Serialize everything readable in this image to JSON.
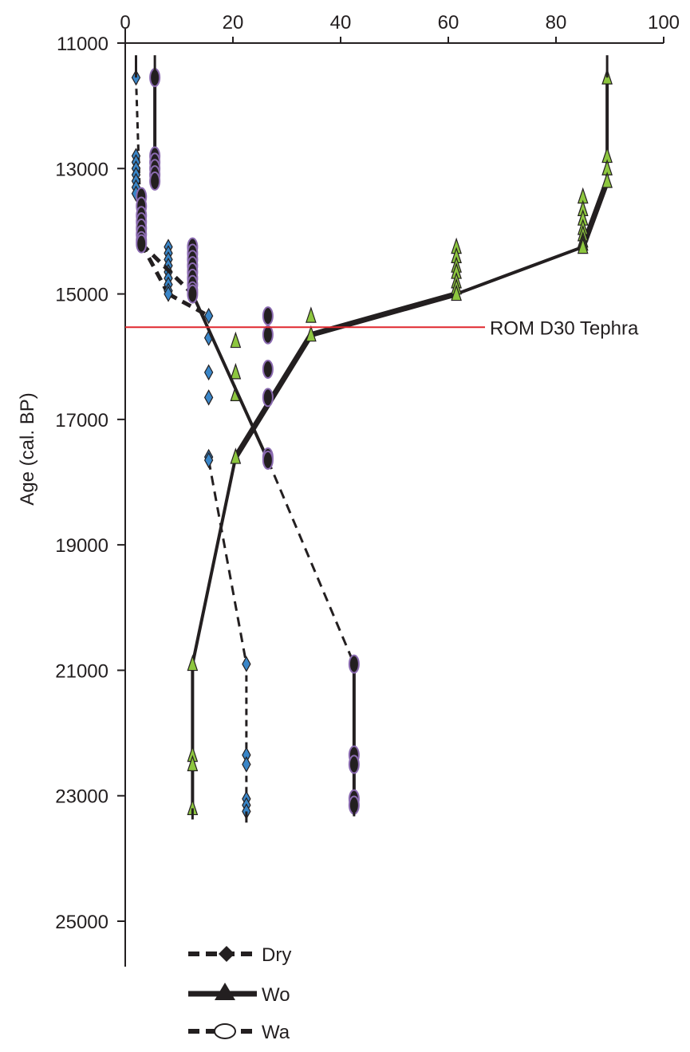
{
  "chart_data": {
    "type": "line",
    "orientation": "depth-profile",
    "title": "",
    "xlabel": "",
    "ylabel": "Age (cal. BP)",
    "xlim": [
      0,
      100
    ],
    "ylim": [
      11000,
      25000
    ],
    "y_reversed": true,
    "x_axis_position": "top",
    "x_ticks": [
      0,
      20,
      40,
      60,
      80,
      100
    ],
    "y_ticks": [
      11000,
      13000,
      15000,
      17000,
      19000,
      21000,
      23000,
      25000
    ],
    "grid": false,
    "legend_position": "bottom-left",
    "annotations": [
      {
        "text": "ROM D30 Tephra",
        "age": 15530,
        "color": "#e0282e"
      }
    ],
    "series": [
      {
        "name": "Dry",
        "line_style": "dashed",
        "marker": "diamond",
        "marker_fill": "#3a86c8",
        "x": [
          2,
          2,
          2,
          2,
          2,
          2,
          2,
          2,
          3,
          3,
          3,
          3,
          3,
          3,
          3,
          3,
          3,
          8,
          8,
          8,
          8,
          8,
          8,
          8,
          8,
          8,
          15.5,
          15.5,
          15.5,
          15.5,
          15.5,
          15.5,
          22.5,
          22.5,
          22.5,
          22.5,
          22.5,
          22.5
        ],
        "age": [
          11550,
          12800,
          12900,
          13000,
          13100,
          13200,
          13300,
          13400,
          13500,
          13600,
          13700,
          13800,
          13900,
          14000,
          14100,
          14150,
          14200,
          14250,
          14350,
          14450,
          14550,
          14650,
          14750,
          14850,
          14950,
          15000,
          15350,
          15700,
          16250,
          16650,
          17600,
          17650,
          20900,
          22350,
          22500,
          23050,
          23150,
          23250
        ],
        "error_x": 2
      },
      {
        "name": "Wo",
        "line_style": "solid",
        "marker": "triangle",
        "marker_fill": "#8dc63f",
        "x": [
          89.5,
          89.5,
          89.5,
          89.5,
          85,
          85,
          85,
          85,
          85,
          85,
          85,
          85,
          61.5,
          61.5,
          61.5,
          61.5,
          61.5,
          61.5,
          61.5,
          34.5,
          34.5,
          20.5,
          20.5,
          20.5,
          20.5,
          12.5,
          12.5,
          12.5,
          12.5
        ],
        "age": [
          11550,
          12800,
          13000,
          13200,
          13450,
          13650,
          13800,
          13950,
          14050,
          14150,
          14200,
          14250,
          14250,
          14400,
          14550,
          14650,
          14800,
          14900,
          15000,
          15350,
          15650,
          15750,
          16250,
          16600,
          17600,
          20900,
          22350,
          22500,
          23200
        ],
        "error_x": 2
      },
      {
        "name": "Wa",
        "line_style": "dashed",
        "marker": "ellipse",
        "marker_fill": "#231f20",
        "x": [
          5.5,
          5.5,
          5.5,
          5.5,
          5.5,
          5.5,
          3,
          3,
          3,
          3,
          3,
          3,
          3,
          3,
          12.5,
          12.5,
          12.5,
          12.5,
          12.5,
          12.5,
          12.5,
          12.5,
          12.5,
          26.5,
          26.5,
          26.5,
          26.5,
          26.5,
          26.5,
          42.5,
          42.5,
          42.5,
          42.5,
          42.5
        ],
        "age": [
          11550,
          12800,
          12900,
          13000,
          13100,
          13200,
          13450,
          13600,
          13750,
          13850,
          13950,
          14050,
          14150,
          14200,
          14250,
          14350,
          14450,
          14550,
          14650,
          14750,
          14850,
          14950,
          15000,
          15350,
          15650,
          16200,
          16650,
          17600,
          17650,
          20900,
          22350,
          22500,
          23050,
          23150
        ],
        "error_x": 2
      }
    ],
    "connections": {
      "Dry": [
        [
          11550,
          14200
        ],
        [
          14200,
          15000,
          "dashed"
        ],
        [
          15000,
          15350,
          "dashed"
        ],
        [
          17650,
          20900,
          "dashed-thin"
        ],
        [
          20900,
          23250
        ]
      ],
      "Wo": [
        [
          11550,
          13200
        ],
        [
          13200,
          14250,
          "solid"
        ],
        [
          14250,
          15000
        ],
        [
          15000,
          15650,
          "solid"
        ],
        [
          15650,
          17600,
          "solid"
        ],
        [
          17600,
          20900,
          "solid-thin"
        ],
        [
          20900,
          23200
        ]
      ],
      "Wa": [
        [
          11550,
          13200
        ],
        [
          13450,
          14200
        ],
        [
          14200,
          15000,
          "dashed"
        ],
        [
          15000,
          17650
        ],
        [
          17650,
          20900,
          "dashed-thin"
        ],
        [
          20900,
          23150
        ]
      ]
    }
  },
  "legend": {
    "items": [
      {
        "label": "Dry",
        "series": "Dry"
      },
      {
        "label": "Wo",
        "series": "Wo"
      },
      {
        "label": "Wa",
        "series": "Wa"
      }
    ]
  },
  "colors": {
    "axis": "#231f20",
    "tephra_line": "#e0282e",
    "dry_marker": "#3a86c8",
    "wo_marker": "#8dc63f",
    "wa_marker_outline": "#8b6bb1"
  }
}
